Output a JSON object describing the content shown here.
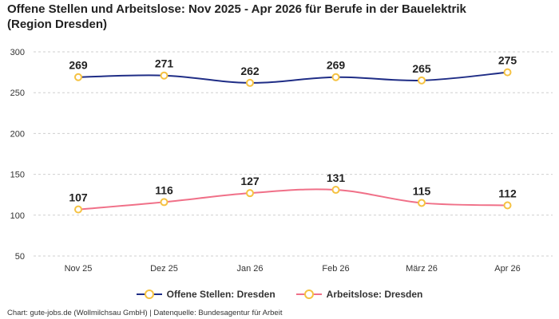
{
  "title_line1": "Offene Stellen und Arbeitslose: Nov 2025 - Apr 2026 für Berufe in der Bauelektrik",
  "title_line2": "(Region Dresden)",
  "footer": "Chart: gute-jobs.de (Wollmilchsau GmbH) | Datenquelle: Bundesagentur für Arbeit",
  "colors": {
    "series1": "#1f2d86",
    "series2": "#f07088",
    "marker": "#f5c242"
  },
  "chart_data": {
    "type": "line",
    "categories": [
      "Nov 25",
      "Dez 25",
      "Jan 26",
      "Feb 26",
      "März 26",
      "Apr 26"
    ],
    "series": [
      {
        "name": "Offene Stellen: Dresden",
        "values": [
          269,
          271,
          262,
          269,
          265,
          275
        ]
      },
      {
        "name": "Arbeitslose: Dresden",
        "values": [
          107,
          116,
          127,
          131,
          115,
          112
        ]
      }
    ],
    "yticks": [
      50,
      100,
      150,
      200,
      250,
      300
    ],
    "ylim": [
      50,
      300
    ],
    "grid": true,
    "legend": "bottom",
    "data_labels": true
  }
}
